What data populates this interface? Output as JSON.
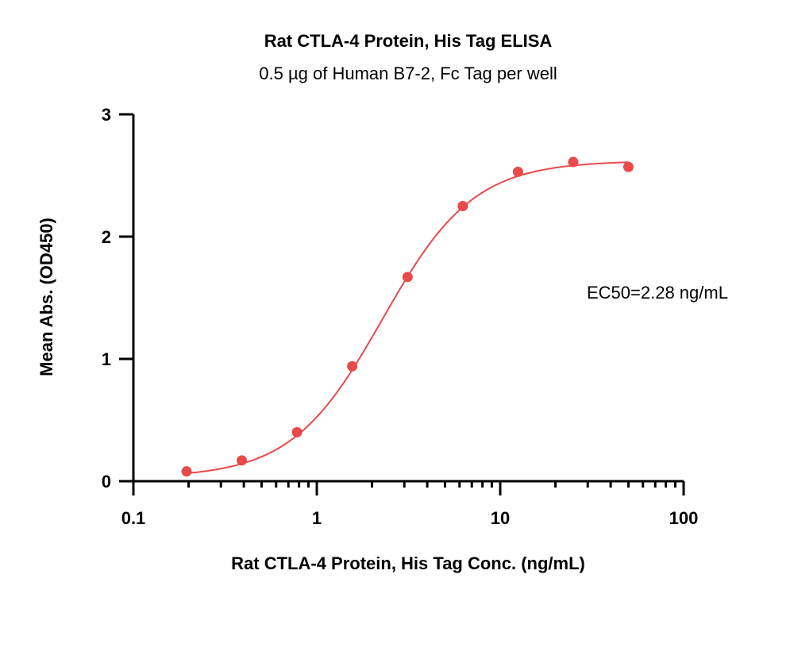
{
  "chart_data": {
    "type": "scatter",
    "title": "Rat CTLA-4 Protein, His Tag ELISA",
    "subtitle": "0.5 µg of Human B7-2, Fc Tag per well",
    "xlabel": "Rat CTLA-4 Protein, His Tag Conc. (ng/mL)",
    "ylabel": "Mean Abs. (OD450)",
    "xscale": "log",
    "xlim": [
      0.1,
      100
    ],
    "ylim": [
      0,
      3
    ],
    "xticks": [
      0.1,
      1,
      10,
      100
    ],
    "xtick_labels": [
      "0.1",
      "1",
      "10",
      "100"
    ],
    "yticks": [
      0,
      1,
      2,
      3
    ],
    "ytick_labels": [
      "0",
      "1",
      "2",
      "3"
    ],
    "grid": false,
    "series": [
      {
        "x": [
          0.195,
          0.39,
          0.78,
          1.56,
          3.125,
          6.25,
          12.5,
          25,
          50
        ],
        "y": [
          0.08,
          0.17,
          0.4,
          0.94,
          1.67,
          2.25,
          2.53,
          2.61,
          2.57
        ],
        "color": "#e84a4a",
        "fit": {
          "model": "4PL",
          "bottom": 0.03,
          "top": 2.62,
          "ec50": 2.28,
          "hill": 1.75
        }
      }
    ],
    "annotations": [
      {
        "text": "EC50=2.28 ng/mL"
      }
    ]
  }
}
